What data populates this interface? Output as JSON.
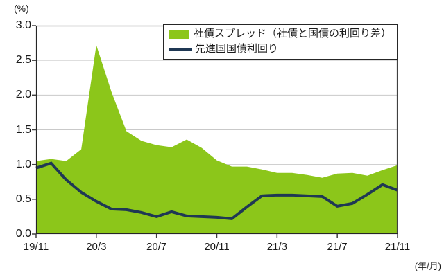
{
  "y_axis_unit_label": "(%)",
  "x_axis_unit_label": "(年/月)",
  "legend": [
    {
      "label": "社債スプレッド（社債と国債の利回り差）",
      "swatch": "area",
      "color": "#8cc61a"
    },
    {
      "label": "先進国国債利回り",
      "swatch": "line",
      "color": "#1f3854"
    }
  ],
  "colors": {
    "area_green": "#8cc61a",
    "line_navy": "#1f3854",
    "gridline": "#c9c9c9",
    "axis": "#404040",
    "text": "#1a1a1a"
  },
  "chart_data": {
    "type": "area",
    "x": [
      "19/11",
      "19/12",
      "20/1",
      "20/2",
      "20/3",
      "20/4",
      "20/5",
      "20/6",
      "20/7",
      "20/8",
      "20/9",
      "20/10",
      "20/11",
      "20/12",
      "21/1",
      "21/2",
      "21/3",
      "21/4",
      "21/5",
      "21/6",
      "21/7",
      "21/8",
      "21/9",
      "21/10",
      "21/11"
    ],
    "series": [
      {
        "name": "社債スプレッド（社債と国債の利回り差）",
        "type": "area",
        "color": "#8cc61a",
        "values": [
          1.05,
          1.08,
          1.05,
          1.22,
          2.72,
          2.05,
          1.48,
          1.34,
          1.28,
          1.25,
          1.36,
          1.24,
          1.06,
          0.97,
          0.97,
          0.93,
          0.88,
          0.88,
          0.85,
          0.81,
          0.87,
          0.88,
          0.84,
          0.92,
          0.99
        ]
      },
      {
        "name": "先進国国債利回り",
        "type": "line",
        "color": "#1f3854",
        "values": [
          0.95,
          1.02,
          0.78,
          0.6,
          0.47,
          0.36,
          0.35,
          0.31,
          0.25,
          0.32,
          0.26,
          0.25,
          0.24,
          0.22,
          0.39,
          0.55,
          0.56,
          0.56,
          0.55,
          0.54,
          0.4,
          0.44,
          0.57,
          0.71,
          0.63
        ]
      }
    ],
    "ylim": [
      0,
      3
    ],
    "y_ticks": [
      0.0,
      0.5,
      1.0,
      1.5,
      2.0,
      2.5,
      3.0
    ],
    "y_tick_labels": [
      "0.0",
      "0.5",
      "1.0",
      "1.5",
      "2.0",
      "2.5",
      "3.0"
    ],
    "x_tick_indices": [
      0,
      4,
      8,
      12,
      16,
      20,
      24
    ],
    "x_tick_labels": [
      "19/11",
      "20/3",
      "20/7",
      "20/11",
      "21/3",
      "21/7",
      "21/11"
    ],
    "grid": "horizontal",
    "legend_position": "top-right-inside",
    "title": "",
    "xlabel": "(年/月)",
    "ylabel": "(%)"
  }
}
